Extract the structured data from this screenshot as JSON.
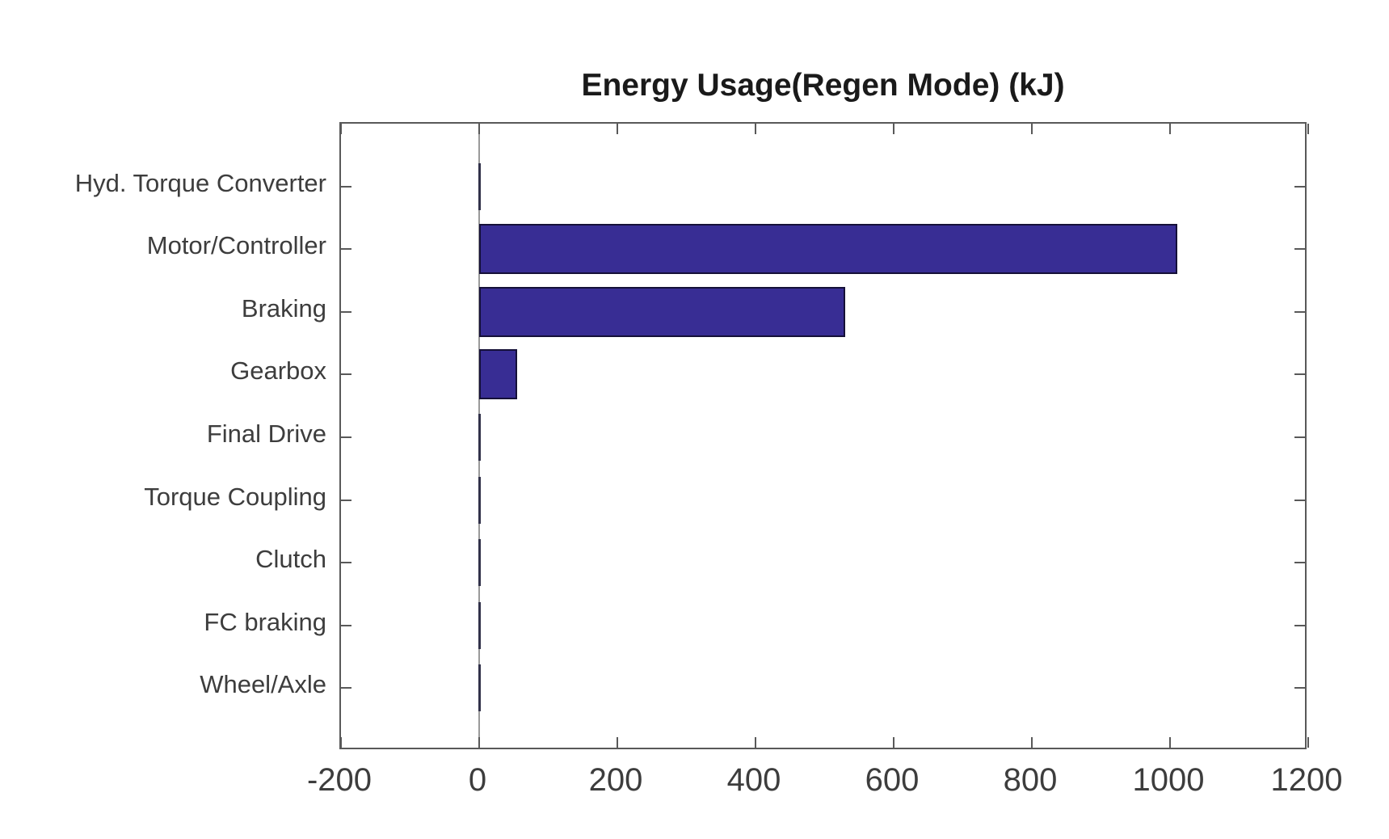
{
  "chart_data": {
    "type": "bar",
    "orientation": "horizontal",
    "title": "Energy Usage(Regen Mode) (kJ)",
    "categories": [
      "Hyd. Torque Converter",
      "Motor/Controller",
      "Braking",
      "Gearbox",
      "Final Drive",
      "Torque Coupling",
      "Clutch",
      "FC braking",
      "Wheel/Axle"
    ],
    "values": [
      0,
      1010,
      530,
      55,
      0,
      0,
      0,
      0,
      0
    ],
    "unit": "kJ",
    "xlim": [
      -200,
      1200
    ],
    "xticks": [
      -200,
      0,
      200,
      400,
      600,
      800,
      1000,
      1200
    ],
    "grid": false,
    "legend": null,
    "zero_baseline": true,
    "colors": {
      "bar_fill": "#382d94",
      "bar_edge": "#151038",
      "axis_frame": "#595959",
      "zero_line": "#9a9a9a",
      "tick_label": "#3d3d3d",
      "title": "#1a1a1a",
      "background": "#ffffff"
    }
  }
}
